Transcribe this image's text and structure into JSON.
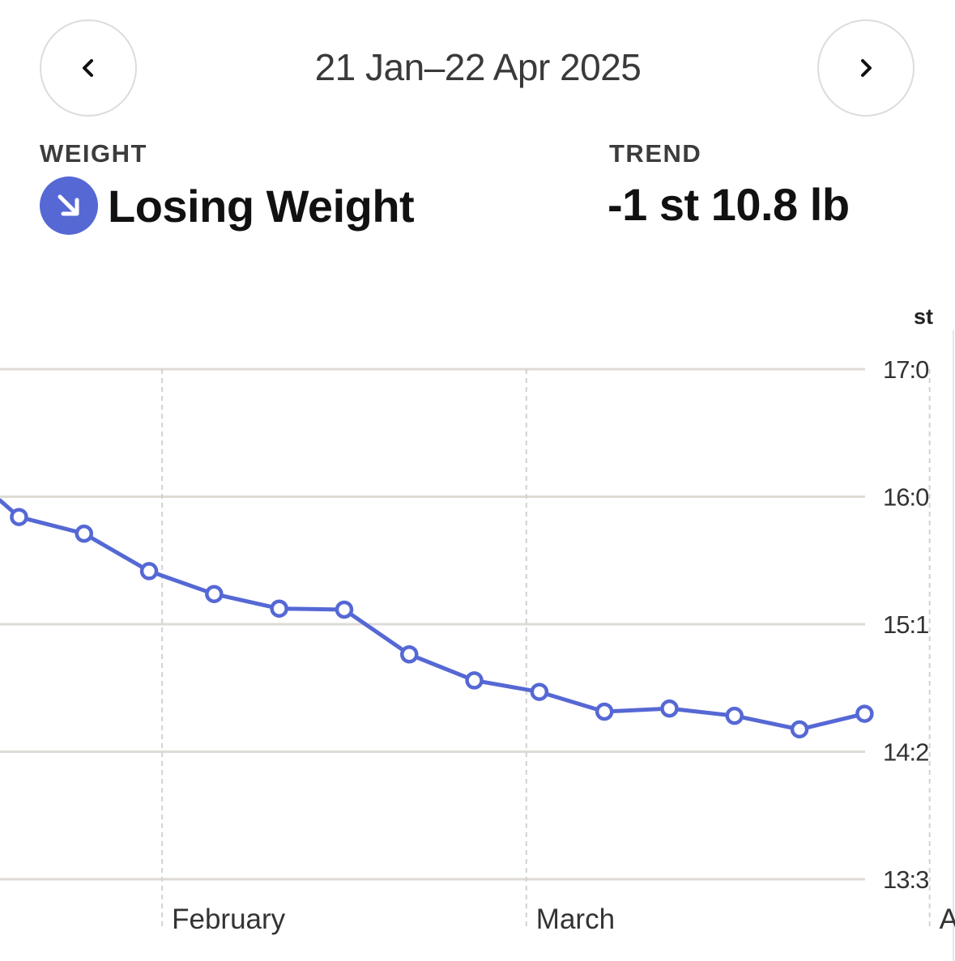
{
  "header": {
    "date_range": "21 Jan–22 Apr 2025",
    "prev_icon": "chevron-left-icon",
    "next_icon": "chevron-right-icon"
  },
  "summary": {
    "weight_label": "WEIGHT",
    "status_text": "Losing Weight",
    "status_icon": "arrow-down-right-icon",
    "trend_label": "TREND",
    "trend_value": "-1 st 10.8 lb"
  },
  "colors": {
    "accent": "#5568d4",
    "grid": "#dedbd6",
    "text": "#111111"
  },
  "chart_data": {
    "type": "line",
    "y_unit": "st",
    "y_ticks": [
      "17:0",
      "16:0",
      "15:1",
      "14:2",
      "13:3"
    ],
    "x_tick_labels": [
      "February",
      "March",
      "April"
    ],
    "grid": true,
    "series": [
      {
        "values": [
          {
            "date": "2025-01-21",
            "weight_lb": 223.8
          },
          {
            "date": "2025-01-26",
            "weight_lb": 222.2
          },
          {
            "date": "2025-01-31",
            "weight_lb": 218.6
          },
          {
            "date": "2025-02-05",
            "weight_lb": 216.4
          },
          {
            "date": "2025-02-10",
            "weight_lb": 215.0
          },
          {
            "date": "2025-02-15",
            "weight_lb": 214.9
          },
          {
            "date": "2025-02-20",
            "weight_lb": 210.6
          },
          {
            "date": "2025-02-25",
            "weight_lb": 208.1
          },
          {
            "date": "2025-03-02",
            "weight_lb": 207.0
          },
          {
            "date": "2025-03-07",
            "weight_lb": 205.1
          },
          {
            "date": "2025-03-12",
            "weight_lb": 205.4
          },
          {
            "date": "2025-03-17",
            "weight_lb": 204.7
          },
          {
            "date": "2025-03-22",
            "weight_lb": 203.4
          },
          {
            "date": "2025-03-27",
            "weight_lb": 204.9
          }
        ]
      }
    ]
  }
}
